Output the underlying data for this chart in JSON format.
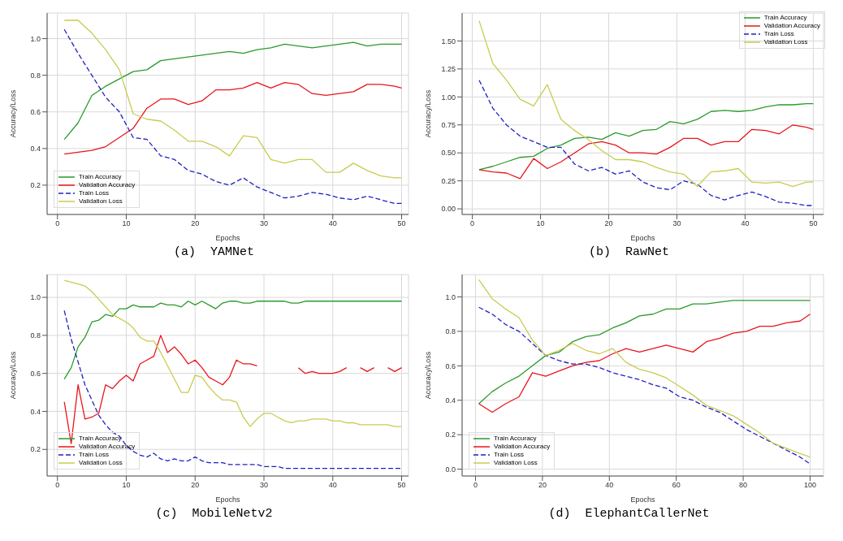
{
  "chart_data": [
    {
      "type": "line",
      "title": "(a)  YAMNet",
      "xlabel": "Epochs",
      "ylabel": "Accuracy/Loss",
      "grid": true,
      "legend": "bottom left",
      "line_style": "solid",
      "xlim": [
        -1.5,
        51
      ],
      "xticks": [
        0,
        10,
        20,
        30,
        40,
        50
      ],
      "ylim": [
        0.04,
        1.14
      ],
      "yticks": [
        0.2,
        0.4,
        0.6,
        0.8,
        {
          "value": 1,
          "label": "1.0"
        }
      ],
      "x": [
        1,
        3,
        5,
        7,
        9,
        11,
        13,
        15,
        17,
        19,
        21,
        23,
        25,
        27,
        29,
        31,
        33,
        35,
        37,
        39,
        41,
        43,
        45,
        47,
        49,
        50
      ],
      "series": [
        {
          "name": "Train Accuracy",
          "color": "#2a9a2a",
          "values": [
            0.45,
            0.54,
            0.69,
            0.74,
            0.78,
            0.82,
            0.83,
            0.88,
            0.89,
            0.9,
            0.91,
            0.92,
            0.93,
            0.92,
            0.94,
            0.95,
            0.97,
            0.96,
            0.95,
            0.96,
            0.97,
            0.98,
            0.96,
            0.97,
            0.97,
            0.97
          ]
        },
        {
          "name": "Validation Accuracy",
          "color": "#e8151b",
          "values": [
            0.37,
            0.38,
            0.39,
            0.41,
            0.46,
            0.51,
            0.62,
            0.67,
            0.67,
            0.64,
            0.66,
            0.72,
            0.72,
            0.73,
            0.76,
            0.73,
            0.76,
            0.75,
            0.7,
            0.69,
            0.7,
            0.71,
            0.75,
            0.75,
            0.74,
            0.73
          ]
        },
        {
          "name": "Train Loss",
          "color": "#2020c0",
          "line_style": "dashed",
          "values": [
            1.05,
            0.92,
            0.8,
            0.68,
            0.6,
            0.46,
            0.45,
            0.36,
            0.34,
            0.28,
            0.26,
            0.22,
            0.2,
            0.24,
            0.19,
            0.16,
            0.13,
            0.14,
            0.16,
            0.15,
            0.13,
            0.12,
            0.14,
            0.12,
            0.1,
            0.1
          ]
        },
        {
          "name": "Validation Loss",
          "color": "#c8cc50",
          "values": [
            1.1,
            1.1,
            1.03,
            0.94,
            0.83,
            0.59,
            0.56,
            0.55,
            0.5,
            0.44,
            0.44,
            0.41,
            0.36,
            0.47,
            0.46,
            0.34,
            0.32,
            0.34,
            0.34,
            0.27,
            0.27,
            0.32,
            0.28,
            0.25,
            0.24,
            0.24
          ]
        }
      ]
    },
    {
      "type": "line",
      "title": "(b)  RawNet",
      "xlabel": "Epochs",
      "ylabel": "Accuracy/Loss",
      "grid": true,
      "legend": "top right",
      "line_style": "solid",
      "xlim": [
        -1.5,
        51.5
      ],
      "xticks": [
        0,
        10,
        20,
        30,
        40,
        50
      ],
      "ylim": [
        -0.05,
        1.75
      ],
      "yticks": [
        {
          "value": 0,
          "label": "0.00"
        },
        0.25,
        {
          "value": 0.5,
          "label": "0.50"
        },
        0.75,
        {
          "value": 1,
          "label": "1.00"
        },
        1.25,
        {
          "value": 1.5,
          "label": "1.50"
        }
      ],
      "x": [
        1,
        3,
        5,
        7,
        9,
        11,
        13,
        15,
        17,
        19,
        21,
        23,
        25,
        27,
        29,
        31,
        33,
        35,
        37,
        39,
        41,
        43,
        45,
        47,
        49,
        50
      ],
      "series": [
        {
          "name": "Train Accuracy",
          "color": "#2a9a2a",
          "values": [
            0.35,
            0.38,
            0.42,
            0.46,
            0.47,
            0.54,
            0.57,
            0.63,
            0.64,
            0.62,
            0.68,
            0.65,
            0.7,
            0.71,
            0.78,
            0.76,
            0.8,
            0.87,
            0.88,
            0.87,
            0.88,
            0.91,
            0.93,
            0.93,
            0.94,
            0.94
          ]
        },
        {
          "name": "Validation Accuracy",
          "color": "#e8151b",
          "values": [
            0.35,
            0.33,
            0.32,
            0.27,
            0.45,
            0.36,
            0.42,
            0.5,
            0.58,
            0.6,
            0.57,
            0.5,
            0.5,
            0.49,
            0.55,
            0.63,
            0.63,
            0.57,
            0.6,
            0.6,
            0.71,
            0.7,
            0.67,
            0.75,
            0.73,
            0.71
          ]
        },
        {
          "name": "Train Loss",
          "color": "#2020c0",
          "line_style": "dashed",
          "values": [
            1.15,
            0.9,
            0.75,
            0.65,
            0.6,
            0.55,
            0.55,
            0.4,
            0.34,
            0.37,
            0.31,
            0.34,
            0.24,
            0.19,
            0.17,
            0.25,
            0.22,
            0.12,
            0.08,
            0.12,
            0.15,
            0.11,
            0.06,
            0.05,
            0.03,
            0.03
          ]
        },
        {
          "name": "Validation Loss",
          "color": "#c8cc50",
          "values": [
            1.68,
            1.3,
            1.15,
            0.98,
            0.92,
            1.11,
            0.8,
            0.7,
            0.62,
            0.52,
            0.44,
            0.44,
            0.42,
            0.37,
            0.33,
            0.31,
            0.2,
            0.33,
            0.34,
            0.36,
            0.24,
            0.23,
            0.24,
            0.2,
            0.24,
            0.24
          ]
        }
      ]
    },
    {
      "type": "line",
      "title": "(c)  MobileNetv2",
      "xlabel": "Epochs",
      "ylabel": "Accuracy/Loss",
      "grid": true,
      "legend": "bottom left",
      "line_style": "solid",
      "xlim": [
        -1.5,
        51
      ],
      "xticks": [
        0,
        10,
        20,
        30,
        40,
        50
      ],
      "ylim": [
        0.06,
        1.12
      ],
      "yticks": [
        0.2,
        0.4,
        0.6,
        0.8,
        {
          "value": 1,
          "label": "1.0"
        }
      ],
      "x": [
        1,
        2,
        3,
        4,
        5,
        6,
        7,
        8,
        9,
        10,
        11,
        12,
        13,
        14,
        15,
        16,
        17,
        18,
        19,
        20,
        21,
        22,
        23,
        24,
        25,
        26,
        27,
        28,
        29,
        30,
        31,
        32,
        33,
        34,
        35,
        36,
        37,
        38,
        39,
        40,
        41,
        42,
        43,
        44,
        45,
        46,
        47,
        48,
        49,
        50
      ],
      "series": [
        {
          "name": "Train Accuracy",
          "color": "#2a9a2a",
          "values": [
            0.57,
            0.63,
            0.74,
            0.79,
            0.87,
            0.88,
            0.91,
            0.9,
            0.94,
            0.94,
            0.96,
            0.95,
            0.95,
            0.95,
            0.97,
            0.96,
            0.96,
            0.95,
            0.98,
            0.96,
            0.98,
            0.96,
            0.94,
            0.97,
            0.98,
            0.98,
            0.97,
            0.97,
            0.98,
            0.98,
            0.98,
            0.98,
            0.98,
            0.97,
            0.97,
            0.98,
            0.98,
            0.98,
            0.98,
            0.98,
            0.98,
            0.98,
            0.98,
            0.98,
            0.98,
            0.98,
            0.98,
            0.98,
            0.98,
            0.98
          ]
        },
        {
          "name": "Validation Accuracy",
          "color": "#e8151b",
          "values": [
            0.45,
            0.23,
            0.54,
            0.36,
            0.37,
            0.39,
            0.54,
            0.52,
            0.56,
            0.59,
            0.56,
            0.65,
            0.67,
            0.69,
            0.8,
            0.71,
            0.74,
            0.7,
            0.65,
            0.67,
            0.63,
            0.58,
            0.56,
            0.54,
            0.58,
            0.67,
            0.65,
            0.65,
            0.64,
            null,
            null,
            null,
            null,
            null,
            0.63,
            0.6,
            0.61,
            0.6,
            0.6,
            0.6,
            0.61,
            0.63,
            null,
            0.63,
            0.61,
            0.63,
            null,
            0.63,
            0.61,
            0.63
          ]
        },
        {
          "name": "Train Loss",
          "color": "#2020c0",
          "line_style": "dashed",
          "values": [
            0.93,
            0.78,
            0.66,
            0.54,
            0.46,
            0.38,
            0.33,
            0.29,
            0.27,
            0.22,
            0.19,
            0.17,
            0.16,
            0.18,
            0.15,
            0.14,
            0.15,
            0.14,
            0.14,
            0.16,
            0.14,
            0.13,
            0.13,
            0.13,
            0.12,
            0.12,
            0.12,
            0.12,
            0.12,
            0.11,
            0.11,
            0.11,
            0.1,
            0.1,
            0.1,
            0.1,
            0.1,
            0.1,
            0.1,
            0.1,
            0.1,
            0.1,
            0.1,
            0.1,
            0.1,
            0.1,
            0.1,
            0.1,
            0.1,
            0.1
          ]
        },
        {
          "name": "Validation Loss",
          "color": "#c8cc50",
          "values": [
            1.09,
            1.08,
            1.07,
            1.06,
            1.03,
            0.99,
            0.95,
            0.91,
            0.89,
            0.87,
            0.84,
            0.79,
            0.77,
            0.77,
            0.71,
            0.64,
            0.57,
            0.5,
            0.5,
            0.59,
            0.58,
            0.53,
            0.49,
            0.46,
            0.46,
            0.45,
            0.37,
            0.32,
            0.36,
            0.39,
            0.39,
            0.37,
            0.35,
            0.34,
            0.35,
            0.35,
            0.36,
            0.36,
            0.36,
            0.35,
            0.35,
            0.34,
            0.34,
            0.33,
            0.33,
            0.33,
            0.33,
            0.33,
            0.32,
            0.32
          ]
        }
      ]
    },
    {
      "type": "line",
      "title": "(d)  ElephantCallerNet",
      "xlabel": "Epochs",
      "ylabel": "Accuracy/Loss",
      "grid": true,
      "legend": "bottom left",
      "line_style": "solid",
      "xlim": [
        -4,
        104
      ],
      "xticks": [
        0,
        20,
        40,
        60,
        80,
        100
      ],
      "ylim": [
        -0.04,
        1.13
      ],
      "yticks": [
        {
          "value": 0,
          "label": "0.0"
        },
        0.2,
        0.4,
        0.6,
        0.8,
        {
          "value": 1,
          "label": "1.0"
        }
      ],
      "x": [
        1,
        5,
        9,
        13,
        17,
        21,
        25,
        29,
        33,
        37,
        41,
        45,
        49,
        53,
        57,
        61,
        65,
        69,
        73,
        77,
        81,
        85,
        89,
        93,
        97,
        100
      ],
      "series": [
        {
          "name": "Train Accuracy",
          "color": "#2a9a2a",
          "values": [
            0.38,
            0.45,
            0.5,
            0.54,
            0.6,
            0.66,
            0.68,
            0.74,
            0.77,
            0.78,
            0.82,
            0.85,
            0.89,
            0.9,
            0.93,
            0.93,
            0.96,
            0.96,
            0.97,
            0.98,
            0.98,
            0.98,
            0.98,
            0.98,
            0.98,
            0.98
          ]
        },
        {
          "name": "Validation Accuracy",
          "color": "#e8151b",
          "values": [
            0.38,
            0.33,
            0.38,
            0.42,
            0.56,
            0.54,
            0.57,
            0.6,
            0.62,
            0.63,
            0.67,
            0.7,
            0.68,
            0.7,
            0.72,
            0.7,
            0.68,
            0.74,
            0.76,
            0.79,
            0.8,
            0.83,
            0.83,
            0.85,
            0.86,
            0.9
          ]
        },
        {
          "name": "Train Loss",
          "color": "#2020c0",
          "line_style": "dashed",
          "values": [
            0.94,
            0.9,
            0.84,
            0.8,
            0.73,
            0.66,
            0.63,
            0.61,
            0.61,
            0.59,
            0.56,
            0.54,
            0.52,
            0.49,
            0.47,
            0.42,
            0.4,
            0.36,
            0.33,
            0.28,
            0.23,
            0.19,
            0.15,
            0.11,
            0.07,
            0.03
          ]
        },
        {
          "name": "Validation Loss",
          "color": "#c8cc50",
          "values": [
            1.1,
            0.99,
            0.93,
            0.88,
            0.75,
            0.66,
            0.69,
            0.73,
            0.69,
            0.67,
            0.7,
            0.62,
            0.58,
            0.56,
            0.53,
            0.48,
            0.43,
            0.37,
            0.34,
            0.31,
            0.26,
            0.21,
            0.15,
            0.12,
            0.09,
            0.07
          ]
        }
      ]
    }
  ]
}
